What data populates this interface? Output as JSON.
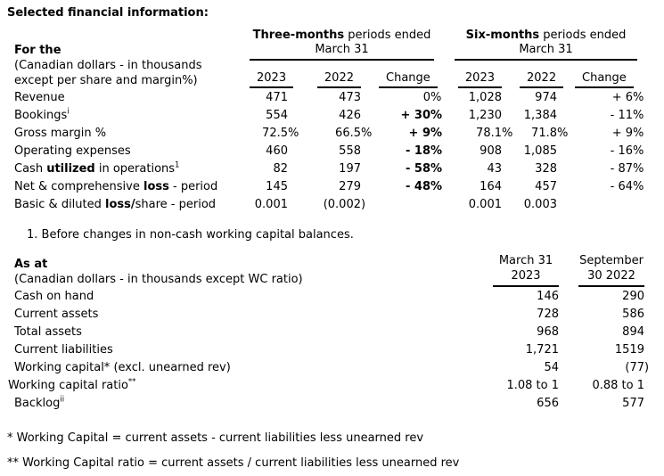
{
  "title": "Selected financial information:",
  "table1": {
    "header": {
      "label": {
        "line1": "For the",
        "line2": "(Canadian dollars - in thousands",
        "line3": "except per share and margin%)"
      },
      "group1": {
        "line1": [
          {
            "text": "Three-months",
            "bold": true
          },
          {
            "text": " periods ended"
          }
        ],
        "line2": "March 31"
      },
      "group2": {
        "line1": [
          {
            "text": "Six-months",
            "bold": true
          },
          {
            "text": " periods ended"
          }
        ],
        "line2": "March 31"
      },
      "cols": [
        "2023",
        "2022",
        "Change"
      ]
    },
    "rows": [
      {
        "label": [
          {
            "text": "Revenue"
          }
        ],
        "t3_2023": [
          {
            "text": "471"
          }
        ],
        "t3_2023_sfx": [],
        "t3_2022": [
          {
            "text": "473"
          }
        ],
        "t3_2022_sfx": [],
        "t3_chg": [
          {
            "text": "0"
          }
        ],
        "t3_chg_sfx": [
          {
            "text": " %"
          }
        ],
        "t6_2023": [
          {
            "text": "1,028"
          }
        ],
        "t6_2023_sfx": [],
        "t6_2022": [
          {
            "text": "974"
          }
        ],
        "t6_2022_sfx": [],
        "t6_chg": [
          {
            "text": "+ 6"
          }
        ],
        "t6_chg_sfx": [
          {
            "text": " %"
          }
        ]
      },
      {
        "label": [
          {
            "text": "Bookings"
          },
          {
            "text": "i",
            "sup": true
          }
        ],
        "t3_2023": [
          {
            "text": "554"
          }
        ],
        "t3_2023_sfx": [],
        "t3_2022": [
          {
            "text": "426"
          }
        ],
        "t3_2022_sfx": [],
        "t3_chg": [
          {
            "text": "+ 30",
            "bold": true
          }
        ],
        "t3_chg_sfx": [
          {
            "text": " %",
            "bold": true
          }
        ],
        "t6_2023": [
          {
            "text": "1,230"
          }
        ],
        "t6_2023_sfx": [],
        "t6_2022": [
          {
            "text": "1,384"
          }
        ],
        "t6_2022_sfx": [],
        "t6_chg": [
          {
            "text": "- 11"
          }
        ],
        "t6_chg_sfx": [
          {
            "text": " %"
          }
        ]
      },
      {
        "label": [
          {
            "text": "Gross margin %"
          }
        ],
        "t3_2023": [
          {
            "text": "72.5"
          }
        ],
        "t3_2023_sfx": [
          {
            "text": " %"
          }
        ],
        "t3_2022": [
          {
            "text": "66.5"
          }
        ],
        "t3_2022_sfx": [
          {
            "text": " %"
          }
        ],
        "t3_chg": [
          {
            "text": "+ 9",
            "bold": true
          }
        ],
        "t3_chg_sfx": [
          {
            "text": " %",
            "bold": true
          }
        ],
        "t6_2023": [
          {
            "text": "78.1"
          }
        ],
        "t6_2023_sfx": [
          {
            "text": " %"
          }
        ],
        "t6_2022": [
          {
            "text": "71.8"
          }
        ],
        "t6_2022_sfx": [
          {
            "text": " %"
          }
        ],
        "t6_chg": [
          {
            "text": "+ 9"
          }
        ],
        "t6_chg_sfx": [
          {
            "text": " %"
          }
        ]
      },
      {
        "label": [
          {
            "text": "Operating expenses"
          }
        ],
        "t3_2023": [
          {
            "text": "460"
          }
        ],
        "t3_2023_sfx": [],
        "t3_2022": [
          {
            "text": "558"
          }
        ],
        "t3_2022_sfx": [],
        "t3_chg": [
          {
            "text": "- 18",
            "bold": true
          }
        ],
        "t3_chg_sfx": [
          {
            "text": " %",
            "bold": true
          }
        ],
        "t6_2023": [
          {
            "text": "908"
          }
        ],
        "t6_2023_sfx": [],
        "t6_2022": [
          {
            "text": "1,085"
          }
        ],
        "t6_2022_sfx": [],
        "t6_chg": [
          {
            "text": "- 16"
          }
        ],
        "t6_chg_sfx": [
          {
            "text": " %"
          }
        ]
      },
      {
        "label": [
          {
            "text": "Cash "
          },
          {
            "text": "utilized",
            "bold": true
          },
          {
            "text": " in operations"
          },
          {
            "text": "1",
            "sup": true
          }
        ],
        "t3_2023": [
          {
            "text": "82"
          }
        ],
        "t3_2023_sfx": [],
        "t3_2022": [
          {
            "text": "197"
          }
        ],
        "t3_2022_sfx": [],
        "t3_chg": [
          {
            "text": "- 58",
            "bold": true
          }
        ],
        "t3_chg_sfx": [
          {
            "text": " %",
            "bold": true
          }
        ],
        "t6_2023": [
          {
            "text": "43"
          }
        ],
        "t6_2023_sfx": [],
        "t6_2022": [
          {
            "text": "328"
          }
        ],
        "t6_2022_sfx": [],
        "t6_chg": [
          {
            "text": "- 87"
          }
        ],
        "t6_chg_sfx": [
          {
            "text": " %"
          }
        ]
      },
      {
        "label": [
          {
            "text": "Net & comprehensive "
          },
          {
            "text": "loss",
            "bold": true
          },
          {
            "text": " - period"
          }
        ],
        "t3_2023": [
          {
            "text": "145"
          }
        ],
        "t3_2023_sfx": [],
        "t3_2022": [
          {
            "text": "279"
          }
        ],
        "t3_2022_sfx": [],
        "t3_chg": [
          {
            "text": "- 48",
            "bold": true
          }
        ],
        "t3_chg_sfx": [
          {
            "text": " %",
            "bold": true
          }
        ],
        "t6_2023": [
          {
            "text": "164"
          }
        ],
        "t6_2023_sfx": [],
        "t6_2022": [
          {
            "text": "457"
          }
        ],
        "t6_2022_sfx": [],
        "t6_chg": [
          {
            "text": "- 64"
          }
        ],
        "t6_chg_sfx": [
          {
            "text": " %"
          }
        ]
      },
      {
        "label": [
          {
            "text": "Basic & diluted "
          },
          {
            "text": "loss/",
            "bold": true
          },
          {
            "text": "share - period"
          }
        ],
        "t3_2023": [
          {
            "text": "0.001"
          }
        ],
        "t3_2023_sfx": [],
        "t3_2022": [
          {
            "text": "(0.002"
          }
        ],
        "t3_2022_sfx": [
          {
            "text": " )"
          }
        ],
        "t3_chg": [],
        "t3_chg_sfx": [],
        "t6_2023": [
          {
            "text": "0.001"
          }
        ],
        "t6_2023_sfx": [],
        "t6_2022": [
          {
            "text": "0.003"
          }
        ],
        "t6_2022_sfx": [],
        "t6_chg": [],
        "t6_chg_sfx": []
      }
    ],
    "footnote": "1.  Before changes in non-cash working capital balances."
  },
  "table2": {
    "header": {
      "label": {
        "line1": "As at",
        "line2": "(Canadian dollars - in thousands except WC ratio)"
      },
      "col1": {
        "line1": "March 31",
        "line2": "2023"
      },
      "col2": {
        "line1": "September",
        "line2": "30 2022"
      }
    },
    "rows": [
      {
        "label": [
          {
            "text": "Cash on hand"
          }
        ],
        "c1": [
          {
            "text": "146"
          }
        ],
        "c1_sfx": [],
        "c2": [
          {
            "text": "290"
          }
        ],
        "c2_sfx": []
      },
      {
        "label": [
          {
            "text": "Current assets"
          }
        ],
        "c1": [
          {
            "text": "728"
          }
        ],
        "c1_sfx": [],
        "c2": [
          {
            "text": "586"
          }
        ],
        "c2_sfx": []
      },
      {
        "label": [
          {
            "text": "Total assets"
          }
        ],
        "c1": [
          {
            "text": "968"
          }
        ],
        "c1_sfx": [],
        "c2": [
          {
            "text": "894"
          }
        ],
        "c2_sfx": []
      },
      {
        "label": [
          {
            "text": "Current liabilities"
          }
        ],
        "c1": [
          {
            "text": "1,721"
          }
        ],
        "c1_sfx": [],
        "c2": [
          {
            "text": "1519"
          }
        ],
        "c2_sfx": []
      },
      {
        "label": [
          {
            "text": "Working capital* (excl. unearned rev)"
          }
        ],
        "c1": [
          {
            "text": "54"
          }
        ],
        "c1_sfx": [],
        "c2": [
          {
            "text": "(77"
          }
        ],
        "c2_sfx": [
          {
            "text": " )"
          }
        ]
      },
      {
        "label": [
          {
            "text": "Working capital ratio"
          },
          {
            "text": "**",
            "sup": true
          }
        ],
        "c1": [
          {
            "text": "1.08 to 1"
          }
        ],
        "c1_sfx": [],
        "c2": [
          {
            "text": "0.88 to 1"
          }
        ],
        "c2_sfx": []
      },
      {
        "label": [
          {
            "text": "Backlog"
          },
          {
            "text": "ii",
            "sup": true
          }
        ],
        "c1": [
          {
            "text": "656"
          }
        ],
        "c1_sfx": [],
        "c2": [
          {
            "text": "577"
          }
        ],
        "c2_sfx": []
      }
    ]
  },
  "footnotes": {
    "star": "* Working Capital = current assets - current liabilities less unearned rev",
    "dstar": "** Working Capital ratio = current assets / current liabilities less unearned rev"
  },
  "colors": {
    "text": "#000000",
    "background": "#ffffff",
    "rule": "#000000"
  }
}
